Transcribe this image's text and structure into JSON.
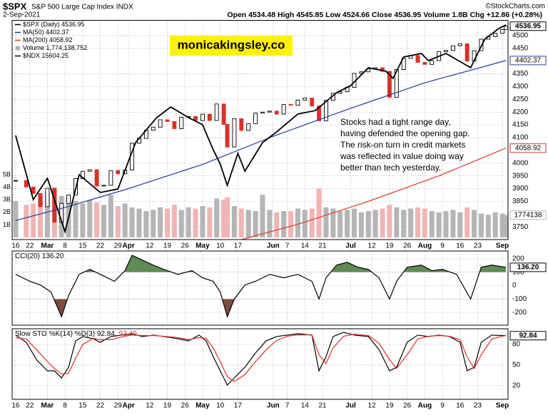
{
  "header": {
    "symbol": "$SPX",
    "name": "S&P 500 Large Cap Index INDX",
    "source": "©StockCharts.com",
    "date": "2-Sep-2021",
    "quote": "Open 4534.48 High 4545.85 Low 4524.66 Close 4536.95 Volume 1.8B Chg +12.86 (+0.28%)"
  },
  "watermark": "monicakingsley.co",
  "chart_data": [
    {
      "type": "stock",
      "xlim": [
        -1,
        139.6
      ],
      "xticks": [
        {
          "value": 0,
          "label": "16"
        },
        {
          "value": 4,
          "label": "22"
        },
        {
          "value": 9,
          "label": "Mar"
        },
        {
          "value": 14,
          "label": "8"
        },
        {
          "value": 19,
          "label": "15"
        },
        {
          "value": 24,
          "label": "22"
        },
        {
          "value": 29,
          "label": "29"
        },
        {
          "value": 32,
          "label": "Apr"
        },
        {
          "value": 38,
          "label": "12"
        },
        {
          "value": 43,
          "label": "19"
        },
        {
          "value": 48,
          "label": "26"
        },
        {
          "value": 53,
          "label": "May"
        },
        {
          "value": 58,
          "label": "10"
        },
        {
          "value": 63,
          "label": "17"
        },
        {
          "value": 73,
          "label": "Jun"
        },
        {
          "value": 77,
          "label": "7"
        },
        {
          "value": 82,
          "label": "14"
        },
        {
          "value": 87,
          "label": "21"
        },
        {
          "value": 95,
          "label": "Jul"
        },
        {
          "value": 101,
          "label": "12"
        },
        {
          "value": 106,
          "label": "19"
        },
        {
          "value": 111,
          "label": "26"
        },
        {
          "value": 116,
          "label": "Aug"
        },
        {
          "value": 121,
          "label": "9"
        },
        {
          "value": 126,
          "label": "16"
        },
        {
          "value": 131,
          "label": "23"
        },
        {
          "value": 138,
          "label": "Sep"
        }
      ],
      "ylim": [
        3700,
        4560
      ],
      "yticks": [
        3750,
        3800,
        3850,
        3900,
        3950,
        4000,
        4100,
        4150,
        4200,
        4250,
        4300,
        4350,
        4450,
        4500
      ],
      "y2lim": [
        -0.17,
        17.3
      ],
      "y2ticks": [
        {
          "value": 1,
          "label": "1B"
        },
        {
          "value": 2,
          "label": "2B"
        },
        {
          "value": 3,
          "label": "3B"
        },
        {
          "value": 4,
          "label": "4B"
        },
        {
          "value": 5,
          "label": "5B"
        }
      ],
      "y3lim": [
        12495,
        15671
      ],
      "grid": true,
      "down_color": "#d9302a",
      "volume_down_color": "#f0b4b4",
      "series": [
        {
          "name": "$SPX (Daily) 4536.95",
          "color": "#000000",
          "end_label": "4536.95",
          "x": [
            0,
            3,
            5,
            7,
            9,
            11,
            13,
            15,
            17,
            19,
            21,
            23,
            25,
            27,
            29,
            31,
            33,
            35,
            37,
            39,
            41,
            43,
            45,
            47,
            49,
            51,
            53,
            55,
            57,
            59,
            60,
            62,
            64,
            66,
            68,
            70,
            72,
            74,
            76,
            78,
            80,
            82,
            84,
            86,
            88,
            90,
            92,
            94,
            96,
            98,
            100,
            102,
            104,
            106,
            108,
            110,
            112,
            114,
            116,
            118,
            120,
            122,
            124,
            126,
            128,
            130,
            132,
            134,
            136,
            138,
            139
          ],
          "values": [
            3932,
            3906,
            3881,
            3829,
            3901,
            3768,
            3842,
            3875,
            3939,
            3968,
            3974,
            3910,
            3913,
            3971,
            3958,
            3973,
            4078,
            4097,
            4129,
            4141,
            4170,
            4163,
            4135,
            4180,
            4183,
            4167,
            4192,
            4167,
            4232,
            4152,
            4063,
            4174,
            4128,
            4155,
            4196,
            4200,
            4204,
            4192,
            4230,
            4227,
            4247,
            4255,
            4224,
            4166,
            4246,
            4274,
            4280,
            4297,
            4352,
            4358,
            4369,
            4374,
            4360,
            4258,
            4367,
            4411,
            4422,
            4395,
            4387,
            4402,
            4437,
            4442,
            4460,
            4468,
            4400,
            4441,
            4486,
            4496,
            4509,
            4524,
            4536.95
          ]
        },
        {
          "name": "MA(50) 4402.37",
          "color": "#2a3b9c",
          "end_label": "4402.37",
          "x": [
            0,
            15,
            32,
            53,
            73,
            95,
            116,
            139
          ],
          "values": [
            3775,
            3830,
            3900,
            3995,
            4105,
            4215,
            4315,
            4402.37
          ]
        },
        {
          "name": "MA(200) 4058.92",
          "color": "#e03a2f",
          "end_label": "4058.92",
          "x": [
            64,
            80,
            100,
            120,
            139
          ],
          "values": [
            3700,
            3760,
            3850,
            3950,
            4058.92
          ]
        },
        {
          "name": "Volume 1,774,138,752",
          "color": "#b5b5b5",
          "axis": "y2",
          "end_label": "1774138",
          "x": [
            0,
            3,
            5,
            7,
            9,
            11,
            13,
            15,
            17,
            19,
            21,
            23,
            25,
            27,
            29,
            31,
            33,
            35,
            37,
            39,
            41,
            43,
            45,
            47,
            49,
            51,
            53,
            55,
            57,
            59,
            60,
            62,
            64,
            66,
            68,
            70,
            72,
            74,
            76,
            78,
            80,
            82,
            84,
            86,
            88,
            90,
            92,
            94,
            96,
            98,
            100,
            102,
            104,
            106,
            108,
            110,
            112,
            114,
            116,
            118,
            120,
            122,
            124,
            126,
            128,
            130,
            132,
            134,
            136,
            138,
            139
          ],
          "values": [
            2.9,
            2.6,
            2.7,
            3.4,
            3.6,
            4.0,
            3.3,
            3.2,
            2.9,
            2.7,
            3.0,
            2.8,
            2.6,
            3.4,
            2.5,
            2.7,
            2.4,
            2.3,
            2.1,
            2.2,
            2.4,
            2.3,
            2.6,
            2.2,
            2.4,
            2.3,
            2.5,
            2.4,
            3.1,
            3.0,
            3.2,
            2.5,
            2.3,
            2.2,
            2.1,
            3.4,
            2.2,
            2.0,
            2.1,
            2.1,
            2.3,
            2.2,
            2.3,
            3.9,
            2.4,
            2.3,
            2.1,
            2.2,
            2.3,
            2.0,
            2.1,
            2.2,
            2.3,
            2.6,
            2.4,
            2.2,
            2.3,
            2.4,
            2.3,
            2.1,
            2.0,
            2.1,
            2.2,
            2.0,
            2.4,
            2.2,
            1.9,
            1.8,
            2.0,
            1.9,
            1.774
          ]
        },
        {
          "name": "$NDX 15604.25",
          "color": "#000000",
          "axis": "y3",
          "x": [
            0,
            5,
            9,
            14,
            18,
            24,
            29,
            34,
            40,
            44,
            49,
            53,
            56,
            58,
            60,
            63,
            65,
            70,
            74,
            80,
            85,
            91,
            95,
            100,
            105,
            107,
            110,
            115,
            117,
            122,
            129,
            133,
            137,
            139
          ],
          "values": [
            14003,
            13074,
            13383,
            12609,
            13435,
            13177,
            13228,
            13900,
            14262,
            14416,
            14262,
            14158,
            13797,
            13590,
            13280,
            13745,
            13487,
            13900,
            14055,
            14313,
            14365,
            14623,
            14726,
            14985,
            14933,
            14830,
            15140,
            15191,
            15088,
            15191,
            14985,
            15398,
            15553,
            15604.25
          ]
        }
      ],
      "annotation": [
        "Stocks had a tight range day,",
        "having defended the opening gap.",
        "The risk-on turn in credit markets",
        "was reflected in value doing way",
        "better than tech yesterday."
      ]
    },
    {
      "type": "line",
      "xlim": [
        -1,
        139.6
      ],
      "ylim": [
        -295,
        258
      ],
      "yticks": [
        -200,
        -100,
        0,
        100,
        200
      ],
      "grid": true,
      "fill": [
        {
          "above": 100,
          "color": "#5f8b55"
        },
        {
          "below": -100,
          "color": "#7d4c3f"
        }
      ],
      "series": [
        {
          "name": "CCI(20) 136.20",
          "color": "#000000",
          "end_label": "136.20",
          "x": [
            0,
            4,
            7,
            10,
            13,
            15,
            18,
            21,
            24,
            28,
            31,
            33,
            36,
            39,
            42,
            46,
            50,
            53,
            56,
            58,
            60,
            62,
            65,
            68,
            72,
            76,
            80,
            84,
            86,
            88,
            91,
            94,
            97,
            100,
            103,
            106,
            108,
            111,
            115,
            118,
            121,
            125,
            129,
            132,
            135,
            139
          ],
          "values": [
            84,
            32,
            5,
            -47,
            -232,
            -74,
            84,
            121,
            84,
            32,
            111,
            226,
            189,
            153,
            121,
            84,
            111,
            58,
            32,
            -47,
            -232,
            -100,
            5,
            32,
            84,
            58,
            84,
            32,
            -100,
            58,
            153,
            174,
            137,
            121,
            58,
            -100,
            32,
            137,
            153,
            111,
            121,
            84,
            -100,
            137,
            153,
            136.2
          ]
        }
      ]
    },
    {
      "type": "line",
      "xlim": [
        -1,
        139.6
      ],
      "xticks": [
        {
          "value": 0,
          "label": "16"
        },
        {
          "value": 4,
          "label": "22"
        },
        {
          "value": 9,
          "label": "Mar"
        },
        {
          "value": 14,
          "label": "8"
        },
        {
          "value": 19,
          "label": "15"
        },
        {
          "value": 24,
          "label": "22"
        },
        {
          "value": 29,
          "label": "29"
        },
        {
          "value": 32,
          "label": "Apr"
        },
        {
          "value": 38,
          "label": "12"
        },
        {
          "value": 43,
          "label": "19"
        },
        {
          "value": 48,
          "label": "26"
        },
        {
          "value": 53,
          "label": "May"
        },
        {
          "value": 58,
          "label": "10"
        },
        {
          "value": 63,
          "label": "17"
        },
        {
          "value": 73,
          "label": "Jun"
        },
        {
          "value": 77,
          "label": "7"
        },
        {
          "value": 82,
          "label": "14"
        },
        {
          "value": 87,
          "label": "21"
        },
        {
          "value": 95,
          "label": "Jul"
        },
        {
          "value": 101,
          "label": "12"
        },
        {
          "value": 106,
          "label": "19"
        },
        {
          "value": 111,
          "label": "26"
        },
        {
          "value": 116,
          "label": "Aug"
        },
        {
          "value": 121,
          "label": "9"
        },
        {
          "value": 126,
          "label": "16"
        },
        {
          "value": 131,
          "label": "23"
        },
        {
          "value": 138,
          "label": "Sep"
        }
      ],
      "ylim": [
        0,
        103
      ],
      "yticks": [
        20,
        50,
        80
      ],
      "grid": true,
      "series": [
        {
          "name": "Slow STO %K(14) %D(3) 92.84,",
          "color": "#000000",
          "end_label": "92.84",
          "x": [
            0,
            3,
            6,
            9,
            11,
            13,
            15,
            17,
            19,
            22,
            24,
            27,
            30,
            33,
            36,
            39,
            42,
            46,
            49,
            52,
            54,
            56,
            58,
            60,
            62,
            65,
            68,
            71,
            74,
            77,
            80,
            84,
            86,
            88,
            90,
            93,
            96,
            100,
            103,
            106,
            108,
            111,
            114,
            117,
            120,
            123,
            126,
            128,
            130,
            132,
            135,
            139
          ],
          "values": [
            93.7,
            83.2,
            57.2,
            41.6,
            41.6,
            31.2,
            46.8,
            85.3,
            91.6,
            88.4,
            83.2,
            91.6,
            93.7,
            95.7,
            91.6,
            93.7,
            91.6,
            88.4,
            85.3,
            93.7,
            85.3,
            62.4,
            41.6,
            20.8,
            31.2,
            46.8,
            67.6,
            85.3,
            91.6,
            93.7,
            95.7,
            93.7,
            41.6,
            62.4,
            91.6,
            97.8,
            93.7,
            91.6,
            72.8,
            41.6,
            46.8,
            83.2,
            93.7,
            91.6,
            93.7,
            91.6,
            83.2,
            41.6,
            46.8,
            83.2,
            93.7,
            92.84
          ]
        },
        {
          "name": "93.40",
          "color": "#e0302c",
          "x": [
            0,
            3,
            6,
            9,
            11,
            13,
            15,
            17,
            19,
            22,
            24,
            27,
            30,
            33,
            36,
            39,
            42,
            46,
            49,
            52,
            54,
            56,
            58,
            60,
            62,
            65,
            68,
            71,
            74,
            77,
            80,
            84,
            86,
            88,
            90,
            93,
            96,
            100,
            103,
            106,
            108,
            111,
            114,
            117,
            120,
            123,
            126,
            128,
            130,
            132,
            135,
            139
          ],
          "values": [
            90,
            88,
            72,
            55,
            45,
            37,
            38,
            60,
            80,
            89,
            87,
            87,
            91,
            94,
            93,
            93,
            92,
            90,
            87,
            90,
            89,
            75,
            55,
            33,
            26,
            36,
            55,
            72,
            86,
            92,
            94,
            94,
            65,
            52,
            75,
            92,
            95,
            93,
            82,
            58,
            45,
            65,
            88,
            92,
            93,
            92,
            87,
            62,
            45,
            65,
            88,
            93.4
          ]
        }
      ]
    }
  ]
}
